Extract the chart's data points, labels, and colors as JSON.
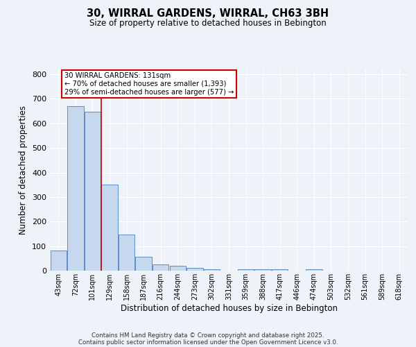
{
  "title_line1": "30, WIRRAL GARDENS, WIRRAL, CH63 3BH",
  "title_line2": "Size of property relative to detached houses in Bebington",
  "xlabel": "Distribution of detached houses by size in Bebington",
  "ylabel": "Number of detached properties",
  "categories": [
    "43sqm",
    "72sqm",
    "101sqm",
    "129sqm",
    "158sqm",
    "187sqm",
    "216sqm",
    "244sqm",
    "273sqm",
    "302sqm",
    "331sqm",
    "359sqm",
    "388sqm",
    "417sqm",
    "446sqm",
    "474sqm",
    "503sqm",
    "532sqm",
    "561sqm",
    "589sqm",
    "618sqm"
  ],
  "values": [
    83,
    670,
    648,
    350,
    148,
    57,
    25,
    19,
    12,
    5,
    0,
    5,
    5,
    5,
    0,
    5,
    0,
    0,
    0,
    0,
    0
  ],
  "bar_color": "#c5d8ed",
  "bar_edge_color": "#5b8dc8",
  "bg_color": "#eef2f9",
  "grid_color": "#ffffff",
  "red_line_x": 3,
  "annotation_text": "30 WIRRAL GARDENS: 131sqm\n← 70% of detached houses are smaller (1,393)\n29% of semi-detached houses are larger (577) →",
  "annotation_box_color": "#ffffff",
  "annotation_box_edge": "#cc0000",
  "footer_line1": "Contains HM Land Registry data © Crown copyright and database right 2025.",
  "footer_line2": "Contains public sector information licensed under the Open Government Licence v3.0.",
  "ylim": [
    0,
    820
  ],
  "yticks": [
    0,
    100,
    200,
    300,
    400,
    500,
    600,
    700,
    800
  ]
}
